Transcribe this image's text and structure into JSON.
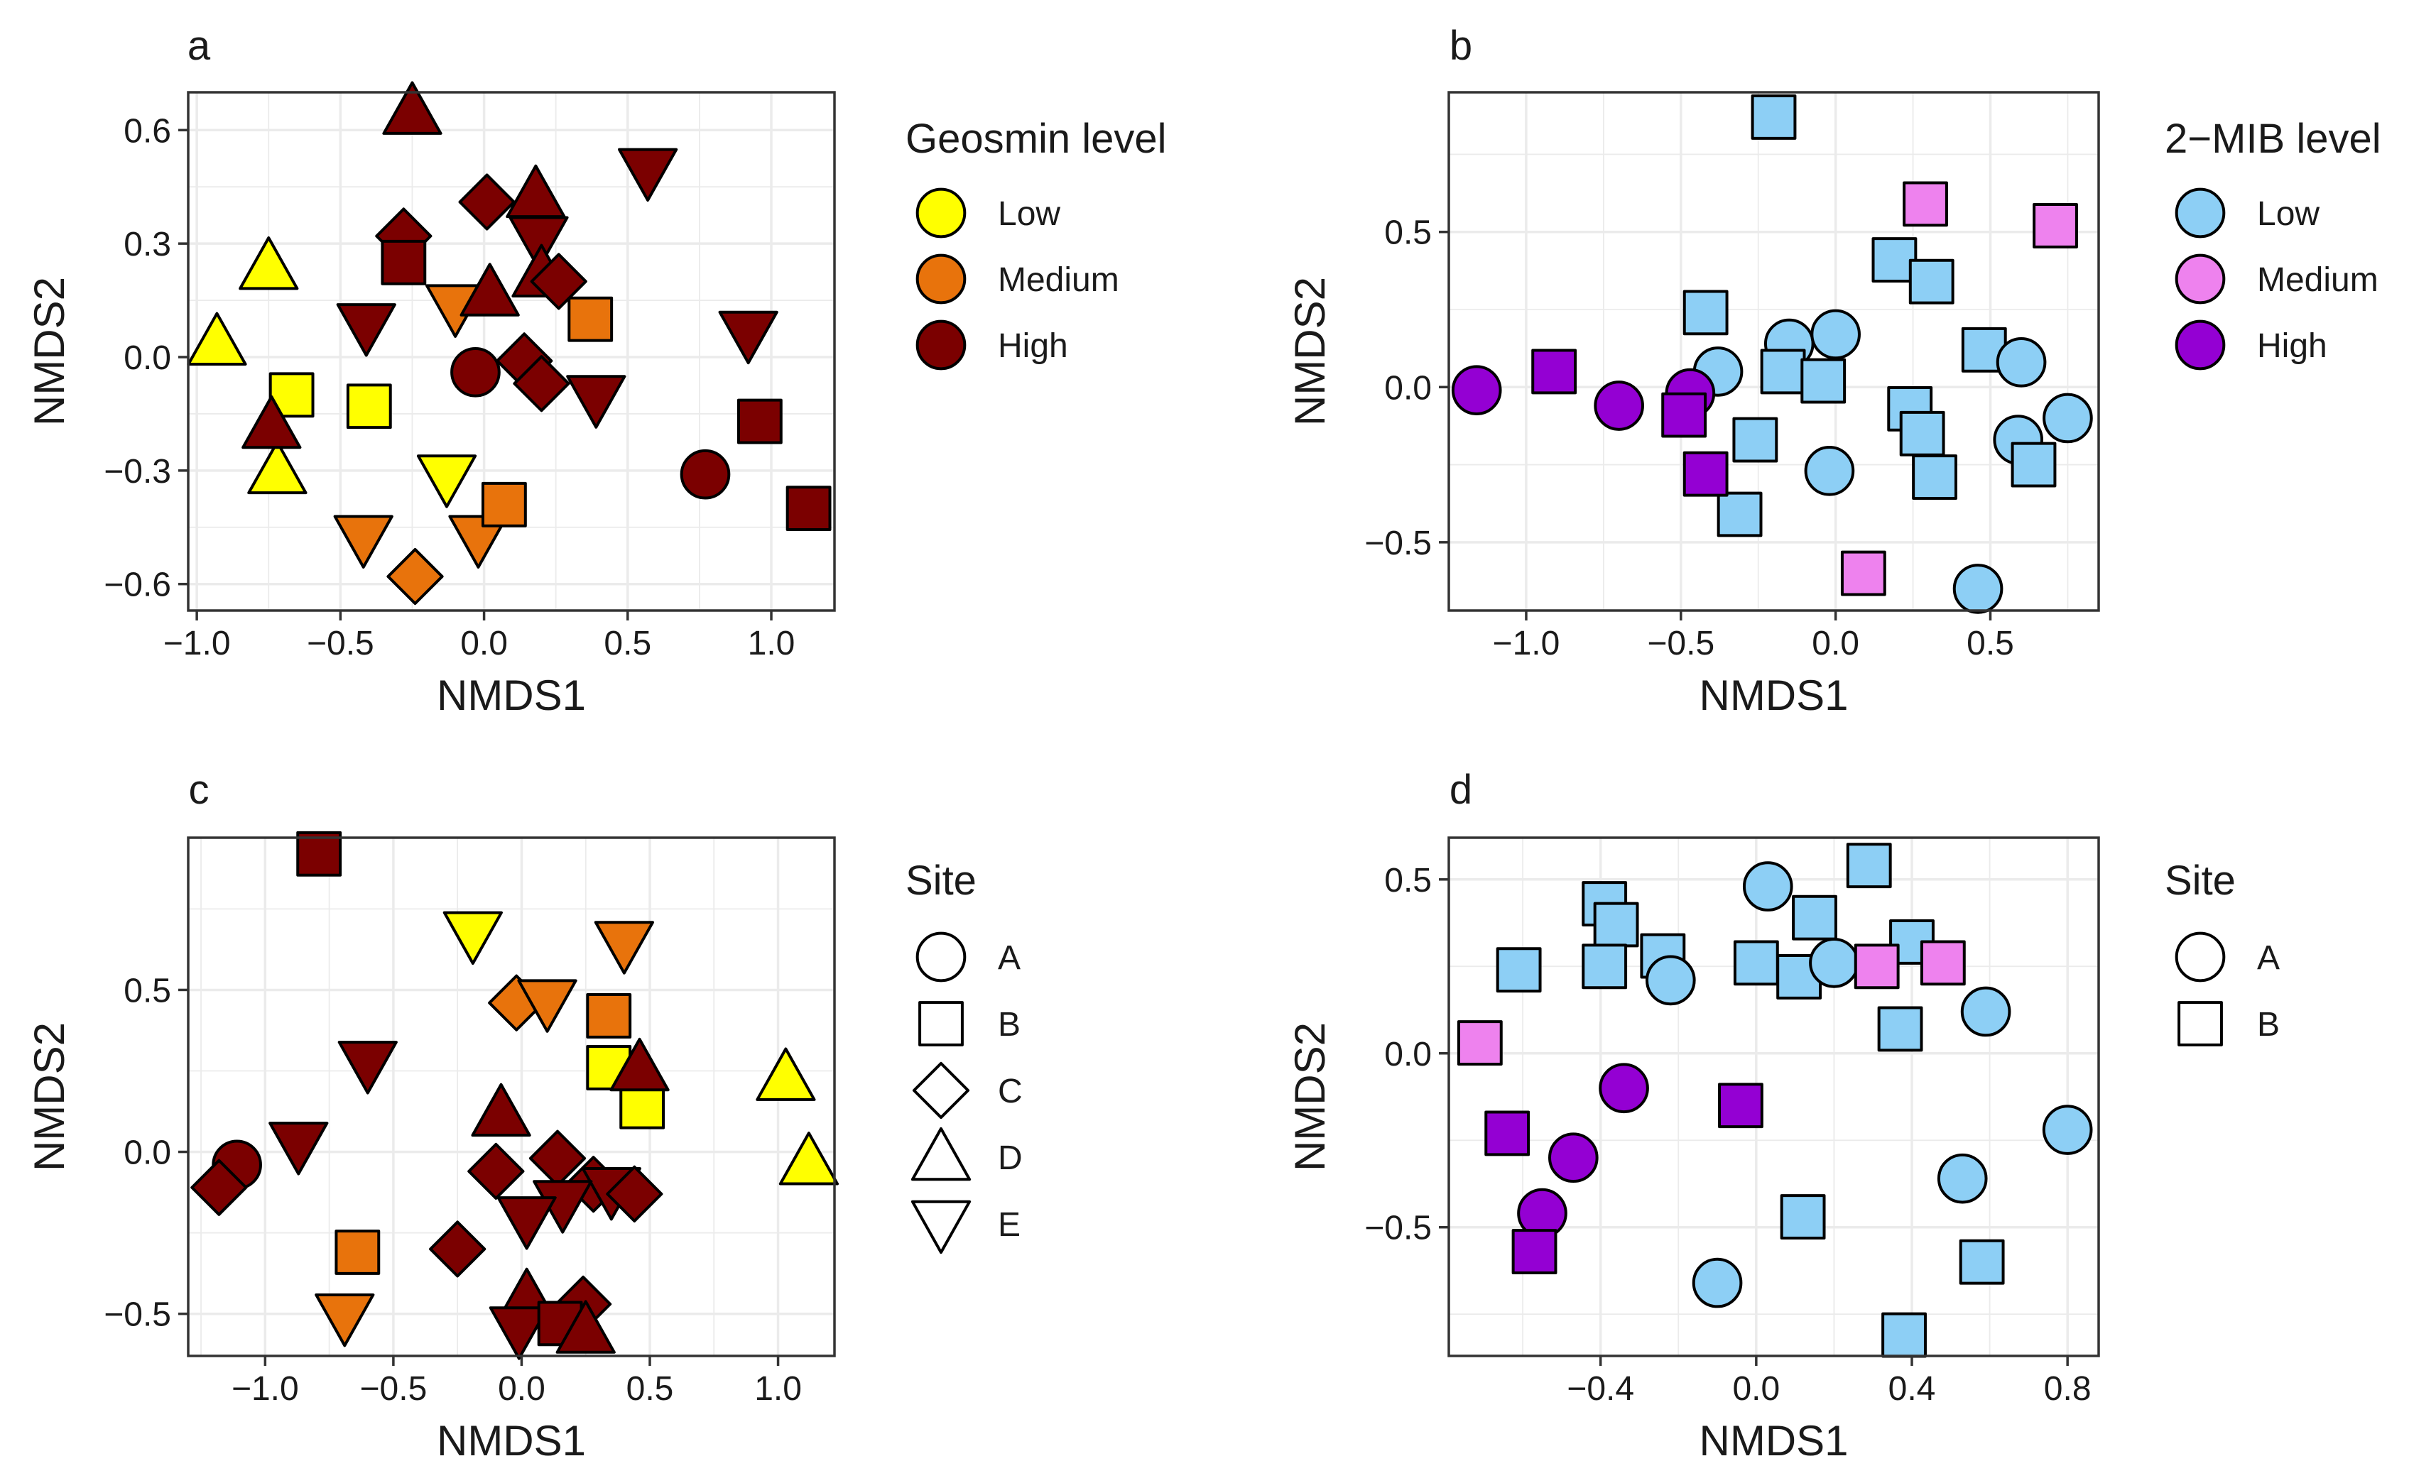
{
  "figure": {
    "colors": {
      "low_yellow": "#ffff00",
      "medium_orange": "#e8730c",
      "high_darkred": "#7b0000",
      "low_blue": "#8dcff5",
      "medium_pink": "#ee82ee",
      "high_purple": "#9400d3",
      "grid": "#ebebeb",
      "frame": "#333333"
    }
  },
  "chart_data": [
    {
      "panel": "a",
      "type": "scatter",
      "xlabel": "NMDS1",
      "ylabel": "NMDS2",
      "xlim": [
        -1.03,
        1.22
      ],
      "ylim": [
        -0.67,
        0.7
      ],
      "x_ticks": [
        -1.0,
        -0.5,
        0.0,
        0.5,
        1.0
      ],
      "x_tick_labels": [
        "−1.0",
        "−0.5",
        "0.0",
        "0.5",
        "1.0"
      ],
      "y_ticks": [
        -0.6,
        -0.3,
        0.0,
        0.3,
        0.6
      ],
      "y_tick_labels": [
        "−0.6",
        "−0.3",
        "0.0",
        "0.3",
        "0.6"
      ],
      "legend": {
        "title": "Geosmin level",
        "kind": "color",
        "entries": [
          {
            "label": "Low",
            "color": "#ffff00"
          },
          {
            "label": "Medium",
            "color": "#e8730c"
          },
          {
            "label": "High",
            "color": "#7b0000"
          }
        ]
      },
      "points": [
        {
          "x": -0.93,
          "y": 0.04,
          "shape": "D",
          "color": "#ffff00"
        },
        {
          "x": -0.75,
          "y": 0.24,
          "shape": "D",
          "color": "#ffff00"
        },
        {
          "x": -0.67,
          "y": -0.1,
          "shape": "B",
          "color": "#ffff00"
        },
        {
          "x": -0.72,
          "y": -0.3,
          "shape": "D",
          "color": "#ffff00"
        },
        {
          "x": -0.4,
          "y": -0.13,
          "shape": "B",
          "color": "#ffff00"
        },
        {
          "x": -0.13,
          "y": -0.32,
          "shape": "E",
          "color": "#ffff00"
        },
        {
          "x": -0.42,
          "y": -0.48,
          "shape": "E",
          "color": "#e8730c"
        },
        {
          "x": -0.24,
          "y": -0.58,
          "shape": "C",
          "color": "#e8730c"
        },
        {
          "x": -0.1,
          "y": 0.13,
          "shape": "E",
          "color": "#e8730c"
        },
        {
          "x": -0.02,
          "y": -0.48,
          "shape": "E",
          "color": "#e8730c"
        },
        {
          "x": 0.07,
          "y": -0.39,
          "shape": "B",
          "color": "#e8730c"
        },
        {
          "x": 0.37,
          "y": 0.1,
          "shape": "B",
          "color": "#e8730c"
        },
        {
          "x": -0.25,
          "y": 0.65,
          "shape": "D",
          "color": "#7b0000"
        },
        {
          "x": -0.28,
          "y": 0.32,
          "shape": "C",
          "color": "#7b0000"
        },
        {
          "x": -0.28,
          "y": 0.25,
          "shape": "B",
          "color": "#7b0000"
        },
        {
          "x": -0.41,
          "y": 0.08,
          "shape": "E",
          "color": "#7b0000"
        },
        {
          "x": -0.74,
          "y": -0.18,
          "shape": "D",
          "color": "#7b0000"
        },
        {
          "x": -0.03,
          "y": -0.04,
          "shape": "A",
          "color": "#7b0000"
        },
        {
          "x": 0.01,
          "y": 0.41,
          "shape": "C",
          "color": "#7b0000"
        },
        {
          "x": 0.02,
          "y": 0.17,
          "shape": "D",
          "color": "#7b0000"
        },
        {
          "x": 0.18,
          "y": 0.43,
          "shape": "D",
          "color": "#7b0000"
        },
        {
          "x": 0.19,
          "y": 0.31,
          "shape": "E",
          "color": "#7b0000"
        },
        {
          "x": 0.2,
          "y": 0.22,
          "shape": "D",
          "color": "#7b0000"
        },
        {
          "x": 0.26,
          "y": 0.2,
          "shape": "C",
          "color": "#7b0000"
        },
        {
          "x": 0.14,
          "y": -0.01,
          "shape": "C",
          "color": "#7b0000"
        },
        {
          "x": 0.2,
          "y": -0.07,
          "shape": "C",
          "color": "#7b0000"
        },
        {
          "x": 0.39,
          "y": -0.11,
          "shape": "E",
          "color": "#7b0000"
        },
        {
          "x": 0.57,
          "y": 0.49,
          "shape": "E",
          "color": "#7b0000"
        },
        {
          "x": 0.92,
          "y": 0.06,
          "shape": "E",
          "color": "#7b0000"
        },
        {
          "x": 0.96,
          "y": -0.17,
          "shape": "B",
          "color": "#7b0000"
        },
        {
          "x": 0.77,
          "y": -0.31,
          "shape": "A",
          "color": "#7b0000"
        },
        {
          "x": 1.13,
          "y": -0.4,
          "shape": "B",
          "color": "#7b0000"
        }
      ]
    },
    {
      "panel": "b",
      "type": "scatter",
      "xlabel": "NMDS1",
      "ylabel": "NMDS2",
      "xlim": [
        -1.25,
        0.85
      ],
      "ylim": [
        -0.72,
        0.95
      ],
      "x_ticks": [
        -1.0,
        -0.5,
        0.0,
        0.5
      ],
      "x_tick_labels": [
        "−1.0",
        "−0.5",
        "0.0",
        "0.5"
      ],
      "y_ticks": [
        -0.5,
        0.0,
        0.5
      ],
      "y_tick_labels": [
        "−0.5",
        "0.0",
        "0.5"
      ],
      "legend": {
        "title": "2−MIB level",
        "kind": "color",
        "entries": [
          {
            "label": "Low",
            "color": "#8dcff5"
          },
          {
            "label": "Medium",
            "color": "#ee82ee"
          },
          {
            "label": "High",
            "color": "#9400d3"
          }
        ]
      },
      "points": [
        {
          "x": -0.2,
          "y": 0.87,
          "shape": "B",
          "color": "#8dcff5"
        },
        {
          "x": -0.42,
          "y": 0.24,
          "shape": "B",
          "color": "#8dcff5"
        },
        {
          "x": -0.38,
          "y": 0.05,
          "shape": "A",
          "color": "#8dcff5"
        },
        {
          "x": -0.15,
          "y": 0.14,
          "shape": "A",
          "color": "#8dcff5"
        },
        {
          "x": -0.17,
          "y": 0.05,
          "shape": "B",
          "color": "#8dcff5"
        },
        {
          "x": 0.0,
          "y": 0.17,
          "shape": "A",
          "color": "#8dcff5"
        },
        {
          "x": -0.04,
          "y": 0.02,
          "shape": "B",
          "color": "#8dcff5"
        },
        {
          "x": -0.26,
          "y": -0.17,
          "shape": "B",
          "color": "#8dcff5"
        },
        {
          "x": -0.31,
          "y": -0.41,
          "shape": "B",
          "color": "#8dcff5"
        },
        {
          "x": -0.02,
          "y": -0.27,
          "shape": "A",
          "color": "#8dcff5"
        },
        {
          "x": 0.19,
          "y": 0.41,
          "shape": "B",
          "color": "#8dcff5"
        },
        {
          "x": 0.31,
          "y": 0.34,
          "shape": "B",
          "color": "#8dcff5"
        },
        {
          "x": 0.24,
          "y": -0.07,
          "shape": "B",
          "color": "#8dcff5"
        },
        {
          "x": 0.28,
          "y": -0.15,
          "shape": "B",
          "color": "#8dcff5"
        },
        {
          "x": 0.32,
          "y": -0.29,
          "shape": "B",
          "color": "#8dcff5"
        },
        {
          "x": 0.48,
          "y": 0.12,
          "shape": "B",
          "color": "#8dcff5"
        },
        {
          "x": 0.6,
          "y": 0.08,
          "shape": "A",
          "color": "#8dcff5"
        },
        {
          "x": 0.59,
          "y": -0.17,
          "shape": "A",
          "color": "#8dcff5"
        },
        {
          "x": 0.64,
          "y": -0.25,
          "shape": "B",
          "color": "#8dcff5"
        },
        {
          "x": 0.75,
          "y": -0.1,
          "shape": "A",
          "color": "#8dcff5"
        },
        {
          "x": 0.46,
          "y": -0.65,
          "shape": "A",
          "color": "#8dcff5"
        },
        {
          "x": 0.29,
          "y": 0.59,
          "shape": "B",
          "color": "#ee82ee"
        },
        {
          "x": 0.71,
          "y": 0.52,
          "shape": "B",
          "color": "#ee82ee"
        },
        {
          "x": 0.09,
          "y": -0.6,
          "shape": "B",
          "color": "#ee82ee"
        },
        {
          "x": -1.16,
          "y": -0.01,
          "shape": "A",
          "color": "#9400d3"
        },
        {
          "x": -0.91,
          "y": 0.05,
          "shape": "B",
          "color": "#9400d3"
        },
        {
          "x": -0.7,
          "y": -0.06,
          "shape": "A",
          "color": "#9400d3"
        },
        {
          "x": -0.47,
          "y": -0.02,
          "shape": "A",
          "color": "#9400d3"
        },
        {
          "x": -0.49,
          "y": -0.09,
          "shape": "B",
          "color": "#9400d3"
        },
        {
          "x": -0.42,
          "y": -0.28,
          "shape": "B",
          "color": "#9400d3"
        }
      ]
    },
    {
      "panel": "c",
      "type": "scatter",
      "xlabel": "NMDS1",
      "ylabel": "NMDS2",
      "xlim": [
        -1.3,
        1.22
      ],
      "ylim": [
        -0.63,
        0.97
      ],
      "x_ticks": [
        -1.0,
        -0.5,
        0.0,
        0.5,
        1.0
      ],
      "x_tick_labels": [
        "−1.0",
        "−0.5",
        "0.0",
        "0.5",
        "1.0"
      ],
      "y_ticks": [
        -0.5,
        0.0,
        0.5
      ],
      "y_tick_labels": [
        "−0.5",
        "0.0",
        "0.5"
      ],
      "legend": {
        "title": "Site",
        "kind": "shape",
        "entries": [
          {
            "label": "A",
            "shape": "A"
          },
          {
            "label": "B",
            "shape": "B"
          },
          {
            "label": "C",
            "shape": "C"
          },
          {
            "label": "D",
            "shape": "D"
          },
          {
            "label": "E",
            "shape": "E"
          }
        ]
      },
      "points": [
        {
          "x": -0.79,
          "y": 0.92,
          "shape": "B",
          "color": "#7b0000"
        },
        {
          "x": -0.19,
          "y": 0.67,
          "shape": "E",
          "color": "#ffff00"
        },
        {
          "x": 0.4,
          "y": 0.64,
          "shape": "E",
          "color": "#e8730c"
        },
        {
          "x": -0.02,
          "y": 0.46,
          "shape": "C",
          "color": "#e8730c"
        },
        {
          "x": 0.1,
          "y": 0.46,
          "shape": "E",
          "color": "#e8730c"
        },
        {
          "x": 0.34,
          "y": 0.42,
          "shape": "B",
          "color": "#e8730c"
        },
        {
          "x": 0.34,
          "y": 0.26,
          "shape": "B",
          "color": "#ffff00"
        },
        {
          "x": 0.47,
          "y": 0.14,
          "shape": "B",
          "color": "#ffff00"
        },
        {
          "x": 1.03,
          "y": 0.23,
          "shape": "D",
          "color": "#ffff00"
        },
        {
          "x": 1.12,
          "y": -0.03,
          "shape": "D",
          "color": "#ffff00"
        },
        {
          "x": -0.64,
          "y": -0.31,
          "shape": "B",
          "color": "#e8730c"
        },
        {
          "x": -0.69,
          "y": -0.51,
          "shape": "E",
          "color": "#e8730c"
        },
        {
          "x": -0.6,
          "y": 0.27,
          "shape": "E",
          "color": "#7b0000"
        },
        {
          "x": -0.87,
          "y": 0.02,
          "shape": "E",
          "color": "#7b0000"
        },
        {
          "x": -1.11,
          "y": -0.04,
          "shape": "A",
          "color": "#7b0000"
        },
        {
          "x": -1.18,
          "y": -0.11,
          "shape": "C",
          "color": "#7b0000"
        },
        {
          "x": -0.08,
          "y": 0.12,
          "shape": "D",
          "color": "#7b0000"
        },
        {
          "x": 0.46,
          "y": 0.26,
          "shape": "D",
          "color": "#7b0000"
        },
        {
          "x": -0.1,
          "y": -0.06,
          "shape": "C",
          "color": "#7b0000"
        },
        {
          "x": 0.14,
          "y": -0.02,
          "shape": "C",
          "color": "#7b0000"
        },
        {
          "x": 0.28,
          "y": -0.1,
          "shape": "C",
          "color": "#7b0000"
        },
        {
          "x": 0.35,
          "y": -0.12,
          "shape": "E",
          "color": "#7b0000"
        },
        {
          "x": 0.44,
          "y": -0.13,
          "shape": "C",
          "color": "#7b0000"
        },
        {
          "x": 0.16,
          "y": -0.16,
          "shape": "E",
          "color": "#7b0000"
        },
        {
          "x": 0.02,
          "y": -0.21,
          "shape": "E",
          "color": "#7b0000"
        },
        {
          "x": -0.25,
          "y": -0.3,
          "shape": "C",
          "color": "#7b0000"
        },
        {
          "x": 0.02,
          "y": -0.45,
          "shape": "D",
          "color": "#7b0000"
        },
        {
          "x": 0.24,
          "y": -0.47,
          "shape": "C",
          "color": "#7b0000"
        },
        {
          "x": -0.01,
          "y": -0.55,
          "shape": "E",
          "color": "#7b0000"
        },
        {
          "x": 0.15,
          "y": -0.53,
          "shape": "B",
          "color": "#7b0000"
        },
        {
          "x": 0.25,
          "y": -0.55,
          "shape": "D",
          "color": "#7b0000"
        }
      ]
    },
    {
      "panel": "d",
      "type": "scatter",
      "xlabel": "NMDS1",
      "ylabel": "NMDS2",
      "xlim": [
        -0.79,
        0.88
      ],
      "ylim": [
        -0.87,
        0.62
      ],
      "x_ticks": [
        -0.4,
        0.0,
        0.4,
        0.8
      ],
      "x_tick_labels": [
        "−0.4",
        "0.0",
        "0.4",
        "0.8"
      ],
      "y_ticks": [
        -0.5,
        0.0,
        0.5
      ],
      "y_tick_labels": [
        "−0.5",
        "0.0",
        "0.5"
      ],
      "legend": {
        "title": "Site",
        "kind": "shape",
        "entries": [
          {
            "label": "A",
            "shape": "A"
          },
          {
            "label": "B",
            "shape": "B"
          }
        ]
      },
      "points": [
        {
          "x": -0.39,
          "y": 0.43,
          "shape": "B",
          "color": "#8dcff5"
        },
        {
          "x": -0.36,
          "y": 0.37,
          "shape": "B",
          "color": "#8dcff5"
        },
        {
          "x": -0.61,
          "y": 0.24,
          "shape": "B",
          "color": "#8dcff5"
        },
        {
          "x": -0.39,
          "y": 0.25,
          "shape": "B",
          "color": "#8dcff5"
        },
        {
          "x": -0.24,
          "y": 0.28,
          "shape": "B",
          "color": "#8dcff5"
        },
        {
          "x": -0.22,
          "y": 0.21,
          "shape": "A",
          "color": "#8dcff5"
        },
        {
          "x": 0.03,
          "y": 0.48,
          "shape": "A",
          "color": "#8dcff5"
        },
        {
          "x": 0.0,
          "y": 0.26,
          "shape": "B",
          "color": "#8dcff5"
        },
        {
          "x": 0.11,
          "y": 0.22,
          "shape": "B",
          "color": "#8dcff5"
        },
        {
          "x": 0.15,
          "y": 0.39,
          "shape": "B",
          "color": "#8dcff5"
        },
        {
          "x": 0.2,
          "y": 0.26,
          "shape": "A",
          "color": "#8dcff5"
        },
        {
          "x": 0.29,
          "y": 0.54,
          "shape": "B",
          "color": "#8dcff5"
        },
        {
          "x": 0.37,
          "y": 0.07,
          "shape": "B",
          "color": "#8dcff5"
        },
        {
          "x": 0.4,
          "y": 0.32,
          "shape": "B",
          "color": "#8dcff5"
        },
        {
          "x": 0.59,
          "y": 0.12,
          "shape": "A",
          "color": "#8dcff5"
        },
        {
          "x": 0.8,
          "y": -0.22,
          "shape": "A",
          "color": "#8dcff5"
        },
        {
          "x": 0.53,
          "y": -0.36,
          "shape": "A",
          "color": "#8dcff5"
        },
        {
          "x": 0.12,
          "y": -0.47,
          "shape": "B",
          "color": "#8dcff5"
        },
        {
          "x": 0.58,
          "y": -0.6,
          "shape": "B",
          "color": "#8dcff5"
        },
        {
          "x": -0.1,
          "y": -0.66,
          "shape": "A",
          "color": "#8dcff5"
        },
        {
          "x": 0.38,
          "y": -0.81,
          "shape": "B",
          "color": "#8dcff5"
        },
        {
          "x": 0.31,
          "y": 0.25,
          "shape": "B",
          "color": "#ee82ee"
        },
        {
          "x": 0.48,
          "y": 0.26,
          "shape": "B",
          "color": "#ee82ee"
        },
        {
          "x": -0.71,
          "y": 0.03,
          "shape": "B",
          "color": "#ee82ee"
        },
        {
          "x": -0.34,
          "y": -0.1,
          "shape": "A",
          "color": "#9400d3"
        },
        {
          "x": -0.04,
          "y": -0.15,
          "shape": "B",
          "color": "#9400d3"
        },
        {
          "x": -0.64,
          "y": -0.23,
          "shape": "B",
          "color": "#9400d3"
        },
        {
          "x": -0.47,
          "y": -0.3,
          "shape": "A",
          "color": "#9400d3"
        },
        {
          "x": -0.55,
          "y": -0.46,
          "shape": "A",
          "color": "#9400d3"
        },
        {
          "x": -0.57,
          "y": -0.57,
          "shape": "B",
          "color": "#9400d3"
        }
      ]
    }
  ]
}
